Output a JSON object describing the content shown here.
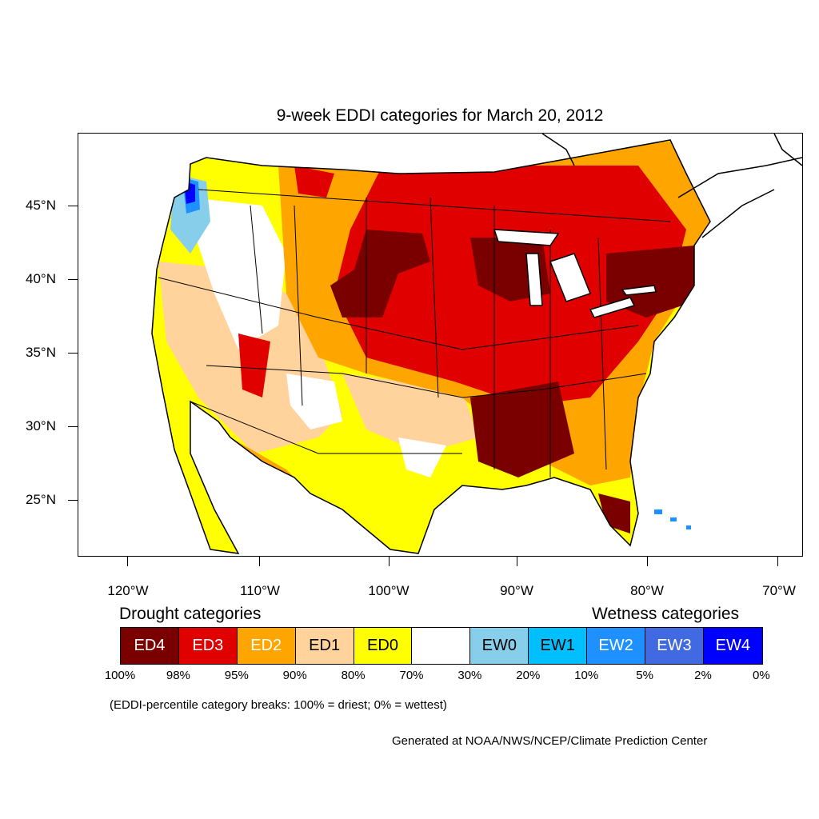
{
  "title": "9-week EDDI categories for March 20, 2012",
  "axes": {
    "lat_labels": [
      "45°N",
      "40°N",
      "35°N",
      "30°N",
      "25°N"
    ],
    "lon_labels": [
      "120°W",
      "110°W",
      "100°W",
      "90°W",
      "80°W",
      "70°W"
    ]
  },
  "legend": {
    "drought_heading": "Drought categories",
    "wetness_heading": "Wetness categories",
    "categories": [
      {
        "label": "ED4",
        "color": "#7a0000",
        "text_color": "#ffffff"
      },
      {
        "label": "ED3",
        "color": "#e00000",
        "text_color": "#ffffff"
      },
      {
        "label": "ED2",
        "color": "#ffa500",
        "text_color": "#ffffff"
      },
      {
        "label": "ED1",
        "color": "#ffd39b",
        "text_color": "#000000"
      },
      {
        "label": "ED0",
        "color": "#ffff00",
        "text_color": "#000000"
      },
      {
        "label": "",
        "color": "#ffffff",
        "text_color": "#000000"
      },
      {
        "label": "EW0",
        "color": "#87ceeb",
        "text_color": "#000000"
      },
      {
        "label": "EW1",
        "color": "#00bfff",
        "text_color": "#000000"
      },
      {
        "label": "EW2",
        "color": "#1e90ff",
        "text_color": "#ffffff"
      },
      {
        "label": "EW3",
        "color": "#4169e1",
        "text_color": "#ffffff"
      },
      {
        "label": "EW4",
        "color": "#0000ff",
        "text_color": "#ffffff"
      }
    ],
    "breaks": [
      "100%",
      "98%",
      "95%",
      "90%",
      "80%",
      "70%",
      "30%",
      "20%",
      "10%",
      "5%",
      "2%",
      "0%"
    ]
  },
  "note": "(EDDI-percentile category breaks: 100% = driest; 0% = wettest)",
  "credit": "Generated at NOAA/NWS/NCEP/Climate Prediction Center"
}
